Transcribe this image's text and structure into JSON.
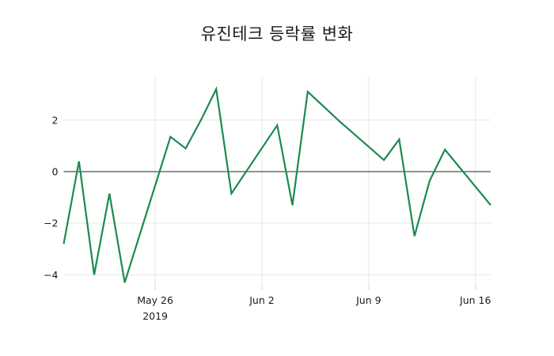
{
  "chart_data": {
    "type": "line",
    "title": "유진테크 등락률 변화",
    "xlabel": "",
    "ylabel": "",
    "series_name": "등락률 (%)",
    "x": [
      "2019-05-20",
      "2019-05-21",
      "2019-05-22",
      "2019-05-23",
      "2019-05-24",
      "2019-05-27",
      "2019-05-28",
      "2019-05-29",
      "2019-05-30",
      "2019-05-31",
      "2019-06-03",
      "2019-06-04",
      "2019-06-05",
      "2019-06-06",
      "2019-06-07",
      "2019-06-10",
      "2019-06-11",
      "2019-06-12",
      "2019-06-13",
      "2019-06-14",
      "2019-06-17"
    ],
    "values": [
      -2.8,
      0.4,
      -4.0,
      -0.85,
      -4.3,
      1.35,
      0.9,
      2.0,
      3.2,
      -0.85,
      1.8,
      -1.3,
      3.1,
      2.55,
      2.0,
      0.45,
      1.25,
      -2.5,
      -0.35,
      0.85,
      -1.3
    ],
    "x_ticks": [
      {
        "date": "2019-05-26",
        "label": "May 26",
        "sublabel": "2019"
      },
      {
        "date": "2019-06-02",
        "label": "Jun 2",
        "sublabel": ""
      },
      {
        "date": "2019-06-09",
        "label": "Jun 9",
        "sublabel": ""
      },
      {
        "date": "2019-06-16",
        "label": "Jun 16",
        "sublabel": ""
      }
    ],
    "y_ticks": [
      {
        "value": 2,
        "label": "2"
      },
      {
        "value": 0,
        "label": "0"
      },
      {
        "value": -2,
        "label": "−2"
      },
      {
        "value": -4,
        "label": "−4"
      }
    ],
    "xlim": [
      "2019-05-20",
      "2019-06-17"
    ],
    "ylim": [
      -4.45,
      3.68
    ],
    "grid": true,
    "zero_line": true,
    "legend": "none",
    "colors": {
      "line": "#1b8a50",
      "grid": "#e6e6e6",
      "zero_line": "#3d3d3d",
      "tick_mark": "#cccccc",
      "text": "#1a1a1a",
      "background": "#ffffff"
    }
  }
}
